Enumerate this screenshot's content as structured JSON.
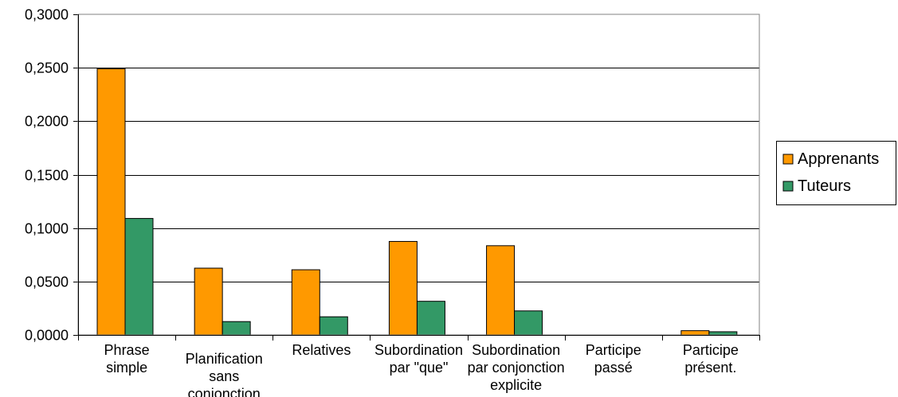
{
  "chart_data": {
    "type": "bar",
    "categories": [
      [
        "Phrase",
        "simple"
      ],
      [
        "Planification",
        "sans",
        "conjonction"
      ],
      [
        "Relatives"
      ],
      [
        "Subordination",
        "par \"que\""
      ],
      [
        "Subordination",
        "par conjonction",
        "explicite"
      ],
      [
        "Participe",
        "passé"
      ],
      [
        "Participe",
        "présent."
      ]
    ],
    "series": [
      {
        "name": "Apprenants",
        "color": "#FF9900",
        "values": [
          0.249,
          0.0625,
          0.061,
          0.0875,
          0.0835,
          0.0,
          0.004
        ]
      },
      {
        "name": "Tuteurs",
        "color": "#339966",
        "values": [
          0.109,
          0.0125,
          0.017,
          0.0315,
          0.0225,
          0.0,
          0.003
        ]
      }
    ],
    "ylim": [
      0,
      0.3
    ],
    "yticks": [
      "0,0000",
      "0,0500",
      "0,1000",
      "0,1500",
      "0,2000",
      "0,2500",
      "0,3000"
    ],
    "grid": true,
    "legend": "right",
    "title": "",
    "xlabel": "",
    "ylabel": ""
  }
}
